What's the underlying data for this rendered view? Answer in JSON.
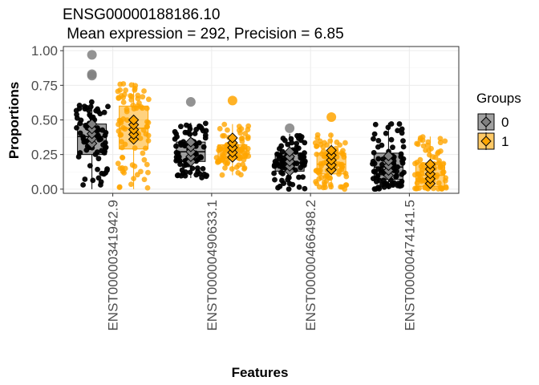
{
  "chart_data": {
    "type": "box-jitter",
    "title": "ENSG00000188186.10",
    "subtitle": " Mean expression = 292, Precision = 6.85",
    "xlabel": "Features",
    "ylabel": "Proportions",
    "ylim": [
      -0.03,
      1.03
    ],
    "yticks": [
      0.0,
      0.25,
      0.5,
      0.75,
      1.0
    ],
    "ytick_labels": [
      "0.00",
      "0.25",
      "0.50",
      "0.75",
      "1.00"
    ],
    "categories": [
      "ENST00000341942.9",
      "ENST00000490633.1",
      "ENST00000466498.2",
      "ENST00000474141.5"
    ],
    "grid": true,
    "legend": {
      "title": "Groups",
      "position": "right",
      "entries": [
        {
          "label": "0",
          "fill": "#808080",
          "point": "#000000"
        },
        {
          "label": "1",
          "fill": "#FFA500",
          "point": "#FFA500"
        }
      ]
    },
    "series": [
      {
        "name": "0",
        "box": [
          {
            "q1": 0.25,
            "median": 0.38,
            "q3": 0.47,
            "whisker_low": 0.0,
            "whisker_high": 0.63,
            "outliers": [
              0.82,
              0.83,
              0.97
            ]
          },
          {
            "q1": 0.2,
            "median": 0.27,
            "q3": 0.34,
            "whisker_low": 0.08,
            "whisker_high": 0.48,
            "outliers": [
              0.63
            ]
          },
          {
            "q1": 0.13,
            "median": 0.19,
            "q3": 0.26,
            "whisker_low": 0.0,
            "whisker_high": 0.4,
            "outliers": [
              0.44
            ]
          },
          {
            "q1": 0.07,
            "median": 0.16,
            "q3": 0.26,
            "whisker_low": 0.0,
            "whisker_high": 0.48,
            "outliers": []
          }
        ],
        "means": [
          0.4,
          0.27,
          0.2,
          0.17
        ]
      },
      {
        "name": "1",
        "box": [
          {
            "q1": 0.29,
            "median": 0.44,
            "q3": 0.6,
            "whisker_low": 0.0,
            "whisker_high": 0.77,
            "outliers": []
          },
          {
            "q1": 0.22,
            "median": 0.29,
            "q3": 0.32,
            "whisker_low": 0.1,
            "whisker_high": 0.47,
            "outliers": [
              0.64
            ]
          },
          {
            "q1": 0.11,
            "median": 0.18,
            "q3": 0.26,
            "whisker_low": 0.0,
            "whisker_high": 0.4,
            "outliers": [
              0.52
            ]
          },
          {
            "q1": 0.02,
            "median": 0.1,
            "q3": 0.19,
            "whisker_low": 0.0,
            "whisker_high": 0.38,
            "outliers": []
          }
        ],
        "means": [
          0.43,
          0.3,
          0.21,
          0.11
        ]
      }
    ]
  }
}
